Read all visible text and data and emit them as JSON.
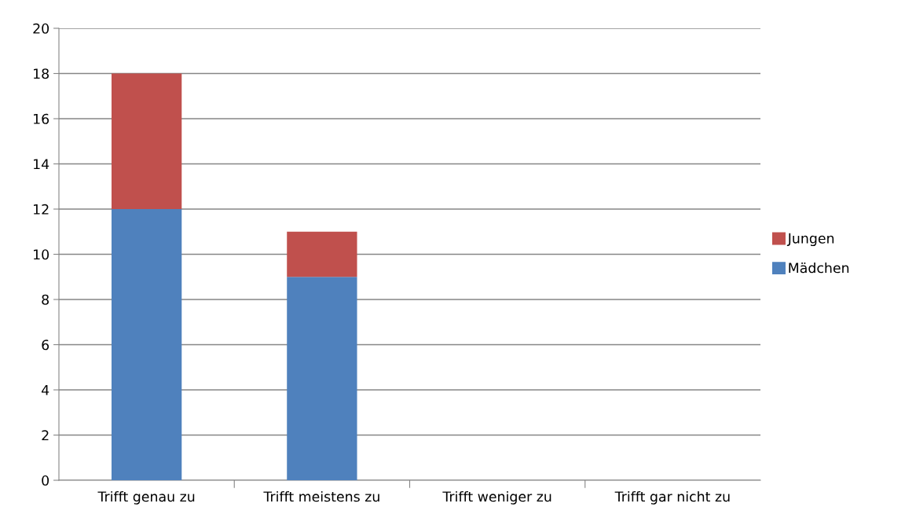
{
  "chart_data": {
    "type": "bar",
    "stacked": true,
    "categories": [
      "Trifft genau zu",
      "Trifft meistens zu",
      "Trifft weniger zu",
      "Trifft gar nicht zu"
    ],
    "series": [
      {
        "name": "Mädchen",
        "color": "#4f81bd",
        "values": [
          12,
          9,
          0,
          0
        ]
      },
      {
        "name": "Jungen",
        "color": "#c0504d",
        "values": [
          6,
          2,
          0,
          0
        ]
      }
    ],
    "ylim": [
      0,
      20
    ],
    "yticks": [
      0,
      2,
      4,
      6,
      8,
      10,
      12,
      14,
      16,
      18,
      20
    ],
    "grid": "y",
    "legend": "right"
  }
}
